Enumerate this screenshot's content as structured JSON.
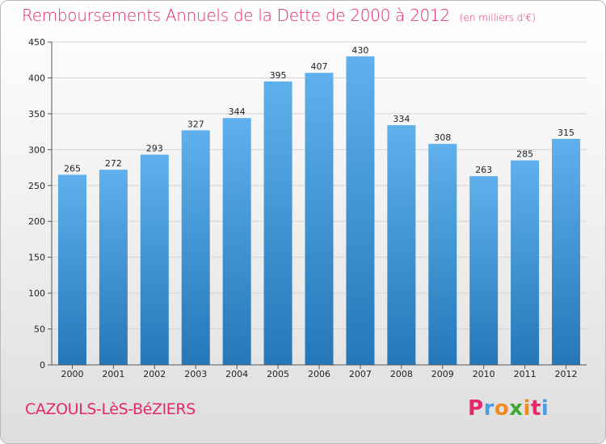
{
  "header": {
    "title": "Remboursements Annuels de la Dette de 2000 à 2012",
    "subtitle": "(en milliers d'€)"
  },
  "footer": {
    "commune": "CAZOULS-LèS-BéZIERS",
    "logo_text": "Proxiti"
  },
  "colors": {
    "title": "#e8266b",
    "bar_top": "#5fb0ec",
    "bar_bottom": "#2577b8",
    "logo_letters": [
      "#e8266b",
      "#4e9de0",
      "#f08a1c",
      "#3aaa35",
      "#f08a1c",
      "#e8266b",
      "#4e9de0"
    ]
  },
  "chart_data": {
    "type": "bar",
    "title": "Remboursements Annuels de la Dette de 2000 à 2012",
    "subtitle": "(en milliers d'€)",
    "xlabel": "",
    "ylabel": "",
    "categories": [
      "2000",
      "2001",
      "2002",
      "2003",
      "2004",
      "2005",
      "2006",
      "2007",
      "2008",
      "2009",
      "2010",
      "2011",
      "2012"
    ],
    "values": [
      265,
      272,
      293,
      327,
      344,
      395,
      407,
      430,
      334,
      308,
      263,
      285,
      315
    ],
    "ylim": [
      0,
      450
    ],
    "yticks": [
      0,
      50,
      100,
      150,
      200,
      250,
      300,
      350,
      400,
      450
    ],
    "grid": true,
    "legend": "none"
  }
}
